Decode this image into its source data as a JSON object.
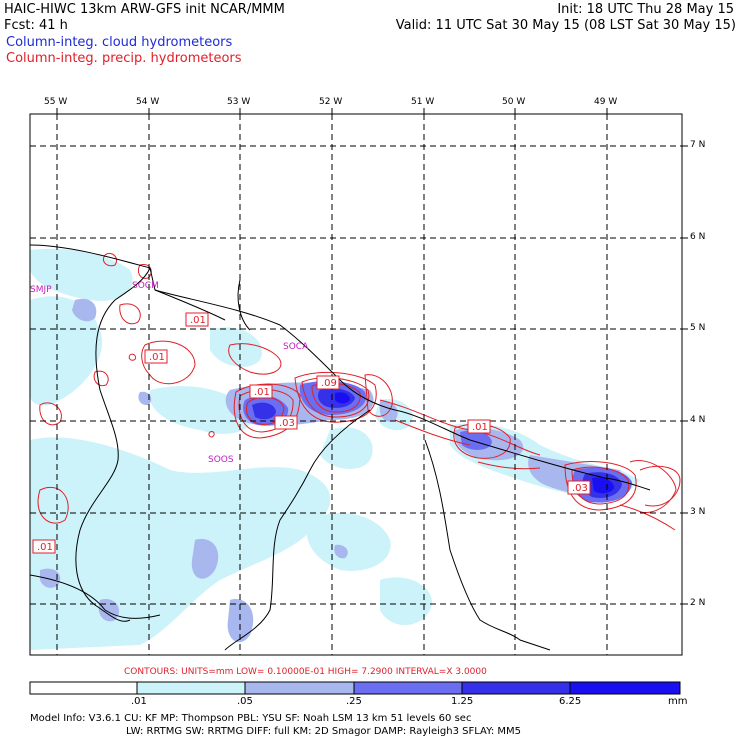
{
  "header": {
    "model_line": "HAIC-HIWC 13km ARW-GFS init   NCAR/MMM",
    "fcst_line": "Fcst:   41 h",
    "init_line": "Init: 18 UTC Thu 28 May 15",
    "valid_line": "Valid: 11 UTC Sat 30 May 15 (08 LST Sat 30 May 15)",
    "field1": "Column-integ. cloud hydrometeors",
    "field2": "Column-integ. precip. hydrometeors"
  },
  "lon_labels": [
    "55 W",
    "54 W",
    "53 W",
    "52 W",
    "51 W",
    "50 W",
    "49 W"
  ],
  "lat_labels": [
    "7 N",
    "6 N",
    "5 N",
    "4 N",
    "3 N",
    "2 N"
  ],
  "stations": [
    "SMJP",
    "SOCM",
    "SOCA",
    "SOOS"
  ],
  "contour_labels": [
    ".01",
    ".01",
    ".01",
    ".09",
    ".03",
    ".01",
    ".03",
    ".01"
  ],
  "contour_note": "CONTOURS:  UNITS=mm   LOW= 0.10000E-01  HIGH=  7.2900       INTERVAL=X  3.0000",
  "colorbar": {
    "ticks": [
      ".01",
      ".05",
      ".25",
      "1.25",
      "6.25"
    ],
    "unit": "mm",
    "colors": [
      "#ffffff",
      "#ccf2fa",
      "#a9b7ef",
      "#6b6ef0",
      "#3431e8",
      "#1a0ff0"
    ]
  },
  "info": {
    "line1": "Model Info: V3.6.1    CU: KF      MP: Thompson     PBL: YSU       SF: Noah LSM      13 km    51 levels   60 sec",
    "line2": "LW: RRTMG   SW: RRTMG  DIFF: full    KM: 2D Smagor DAMP: Rayleigh3  SFLAY: MM5"
  }
}
